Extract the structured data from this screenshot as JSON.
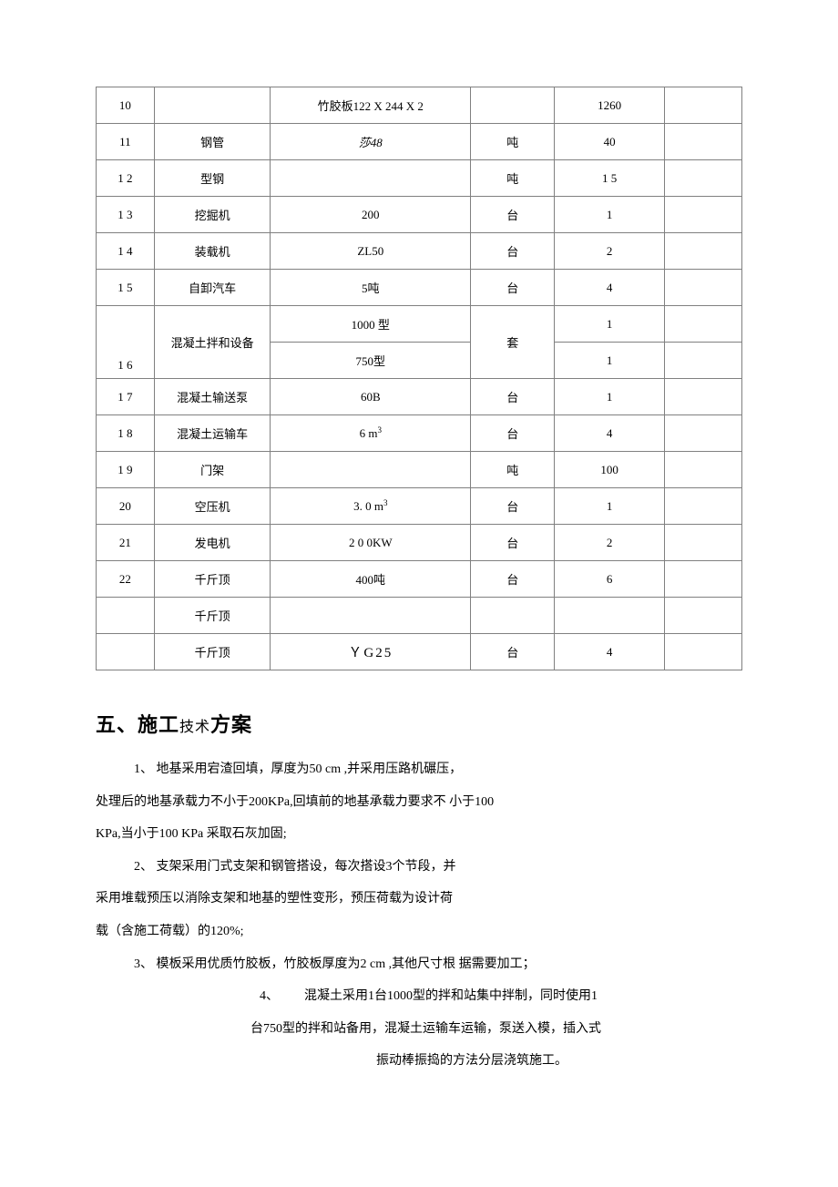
{
  "table": {
    "rows": [
      {
        "num": "10",
        "name": "",
        "spec": "竹胶板122 X 244 X 2",
        "unit": "",
        "qty": "1260",
        "note": ""
      },
      {
        "num": "11",
        "name": "钢管",
        "spec": "莎48",
        "specClass": "italic",
        "unit": "吨",
        "qty": "40",
        "note": ""
      },
      {
        "num": "1 2",
        "name": "型钢",
        "spec": "",
        "unit": "吨",
        "qty": "1 5",
        "note": ""
      },
      {
        "num": "1 3",
        "name": "挖掘机",
        "spec": "200",
        "unit": "台",
        "qty": "1",
        "note": ""
      },
      {
        "num": "1 4",
        "name": "装载机",
        "spec": "ZL50",
        "unit": "台",
        "qty": "2",
        "note": ""
      },
      {
        "num": "1 5",
        "name": "自卸汽车",
        "spec": "5吨",
        "unit": "台",
        "qty": "4",
        "note": ""
      }
    ],
    "merged": {
      "num": "1 6",
      "name": "混凝土拌和设备",
      "spec1": "1000 型",
      "spec2": "750型",
      "unit": "套",
      "qty1": "1",
      "qty2": "1"
    },
    "rows2": [
      {
        "num": "1 7",
        "name": "混凝土输送泵",
        "spec": "60B",
        "unit": "台",
        "qty": "1",
        "note": ""
      },
      {
        "num": "1 8",
        "name": "混凝土运输车",
        "spec": "6 m",
        "sup": "3",
        "unit": "台",
        "qty": "4",
        "note": ""
      },
      {
        "num": "1 9",
        "name": "门架",
        "spec": "",
        "unit": "吨",
        "qty": "100",
        "note": ""
      },
      {
        "num": "20",
        "name": "空压机",
        "spec": "3. 0 m",
        "sup": "3",
        "unit": "台",
        "qty": "1",
        "note": ""
      },
      {
        "num": "21",
        "name": "发电机",
        "spec": "2 0 0KW",
        "unit": "台",
        "qty": "2",
        "note": ""
      },
      {
        "num": "22",
        "name": "千斤顶",
        "spec": "400吨",
        "unit": "台",
        "qty": "6",
        "note": ""
      },
      {
        "num": "",
        "name": "千斤顶",
        "spec": "",
        "unit": "",
        "qty": "",
        "note": ""
      },
      {
        "num": "",
        "name": "千斤顶",
        "spec": "ＹG25",
        "specClass": "yg25",
        "unit": "台",
        "qty": "4",
        "note": ""
      }
    ]
  },
  "heading": {
    "part1": "五、施工",
    "part2": "技术",
    "part3": "方案"
  },
  "paragraphs": {
    "p1": "1、 地基采用宕渣回填，厚度为50 cm ,并采用压路机碾压，",
    "p2": "处理后的地基承载力不小于200KPa,回填前的地基承载力要求不 小于100",
    "p3": "KPa,当小于100 KPa 采取石灰加固;",
    "p4": "2、 支架采用门式支架和钢管搭设，每次搭设3个节段，并",
    "p5": "采用堆载预压以消除支架和地基的塑性变形，预压荷载为设计荷",
    "p6": "载（含施工荷载）的120%;",
    "p7": "3、 模板采用优质竹胶板，竹胶板厚度为2 cm ,其他尺寸根 据需要加工；",
    "p8a": "4、",
    "p8b": "混凝土采用1台1000型的拌和站集中拌制，同时使用1",
    "p9": "台750型的拌和站备用，混凝土运输车运输，泵送入模，插入式",
    "p10": "振动棒振捣的方法分层浇筑施工。"
  }
}
